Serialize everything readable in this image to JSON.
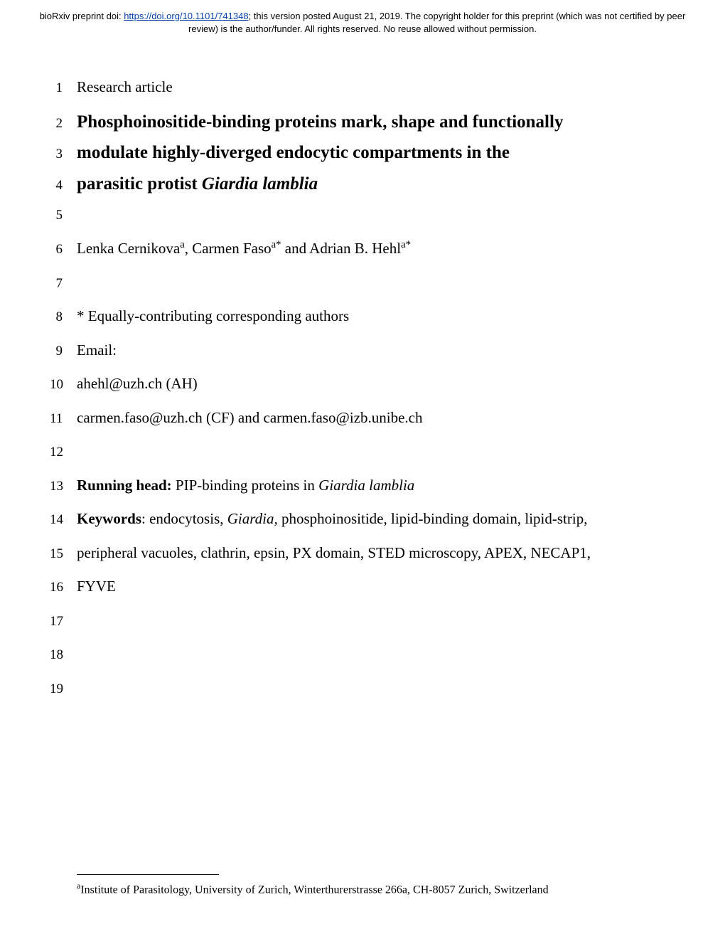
{
  "header": {
    "prefix": "bioRxiv preprint doi: ",
    "doi_url": "https://doi.org/10.1101/741348",
    "middle": "; this version posted August 21, 2019. The copyright holder for this preprint (which was not certified by peer review) is the author/funder. All rights reserved. No reuse allowed without permission."
  },
  "lines": {
    "l1": "Research article",
    "l2": "Phosphoinositide-binding proteins mark, shape and functionally",
    "l3_a": "modulate highly-diverged endocytic compartments in the",
    "l4_a": "parasitic protist ",
    "l4_b": "Giardia lamblia",
    "l6_a": "Lenka Cernikova",
    "l6_sup1": "a",
    "l6_b": ", Carmen Faso",
    "l6_sup2": "a*",
    "l6_c": " and Adrian B. Hehl",
    "l6_sup3": "a*",
    "l8": "* Equally-contributing corresponding authors",
    "l9": "Email:",
    "l10": "ahehl@uzh.ch (AH)",
    "l11": "carmen.faso@uzh.ch (CF) and carmen.faso@izb.unibe.ch",
    "l13_a": "Running head:",
    "l13_b": " PIP-binding proteins in ",
    "l13_c": "Giardia lamblia",
    "l14_a": "Keywords",
    "l14_b": ": endocytosis, ",
    "l14_c": " Giardia,",
    "l14_d": " phosphoinositide, lipid-binding domain, lipid-strip,",
    "l15": "peripheral vacuoles, clathrin, epsin, PX domain, STED microscopy, APEX, NECAP1,",
    "l16": "FYVE"
  },
  "line_numbers": {
    "n1": "1",
    "n2": "2",
    "n3": "3",
    "n4": "4",
    "n5": "5",
    "n6": "6",
    "n7": "7",
    "n8": "8",
    "n9": "9",
    "n10": "10",
    "n11": "11",
    "n12": "12",
    "n13": "13",
    "n14": "14",
    "n15": "15",
    "n16": "16",
    "n17": "17",
    "n18": "18",
    "n19": "19"
  },
  "footnote": {
    "sup": "a",
    "text": "Institute of Parasitology, University of Zurich, Winterthurerstrasse 266a, CH-8057 Zurich, Switzerland"
  }
}
